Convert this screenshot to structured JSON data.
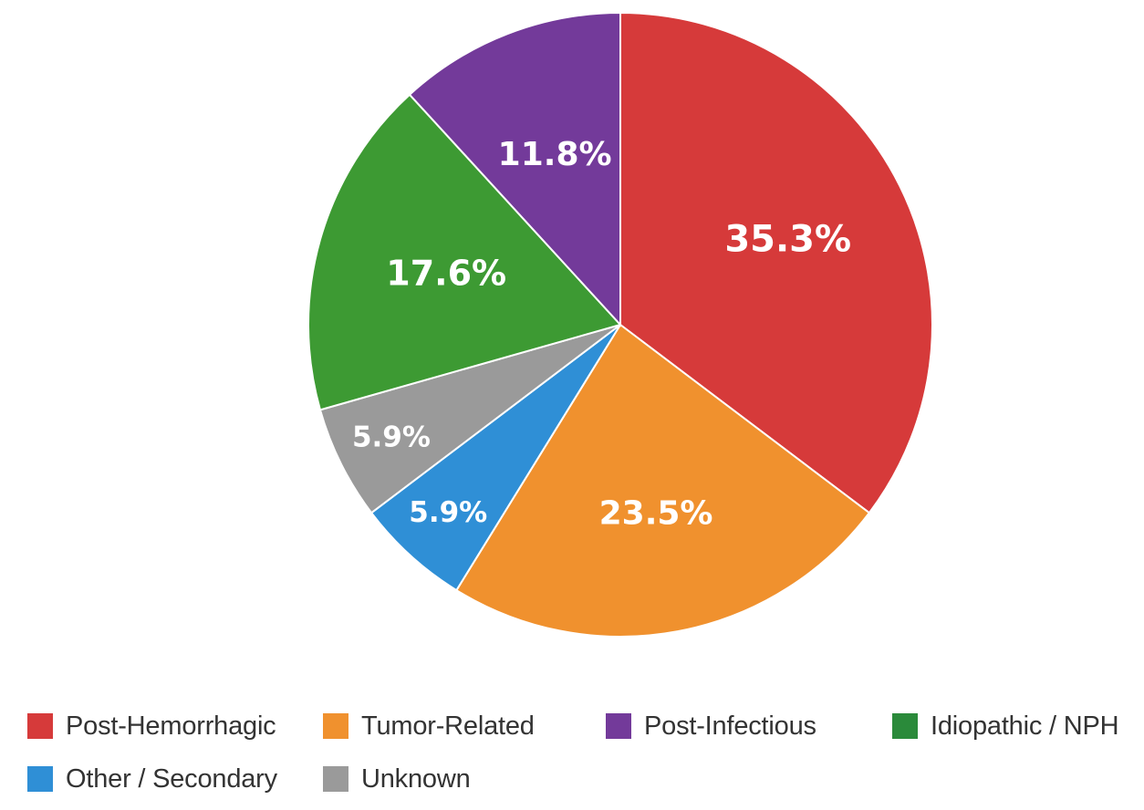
{
  "chart_data": {
    "type": "pie",
    "title": "",
    "legend_position": "bottom",
    "series": [
      {
        "name": "Post-Hemorrhagic",
        "value": 35.3,
        "label": "35.3%",
        "color": "#d63a3a"
      },
      {
        "name": "Tumor-Related",
        "value": 23.5,
        "label": "23.5%",
        "color": "#f0912e"
      },
      {
        "name": "Other / Secondary",
        "value": 5.9,
        "label": "5.9%",
        "color": "#2f8fd6"
      },
      {
        "name": "Unknown",
        "value": 5.9,
        "label": "5.9%",
        "color": "#9a9a9a"
      },
      {
        "name": "Idiopathic / NPH",
        "value": 17.6,
        "label": "17.6%",
        "color": "#3d9a33"
      },
      {
        "name": "Post-Infectious",
        "value": 11.8,
        "label": "11.8%",
        "color": "#733a9a"
      }
    ],
    "legend": [
      {
        "name": "Post-Hemorrhagic",
        "color": "#d63a3a"
      },
      {
        "name": "Tumor-Related",
        "color": "#f0912e"
      },
      {
        "name": "Post-Infectious",
        "color": "#733a9a"
      },
      {
        "name": "Idiopathic / NPH",
        "color": "#2a8a3a"
      },
      {
        "name": "Other / Secondary",
        "color": "#2f8fd6"
      },
      {
        "name": "Unknown",
        "color": "#9a9a9a"
      }
    ]
  }
}
